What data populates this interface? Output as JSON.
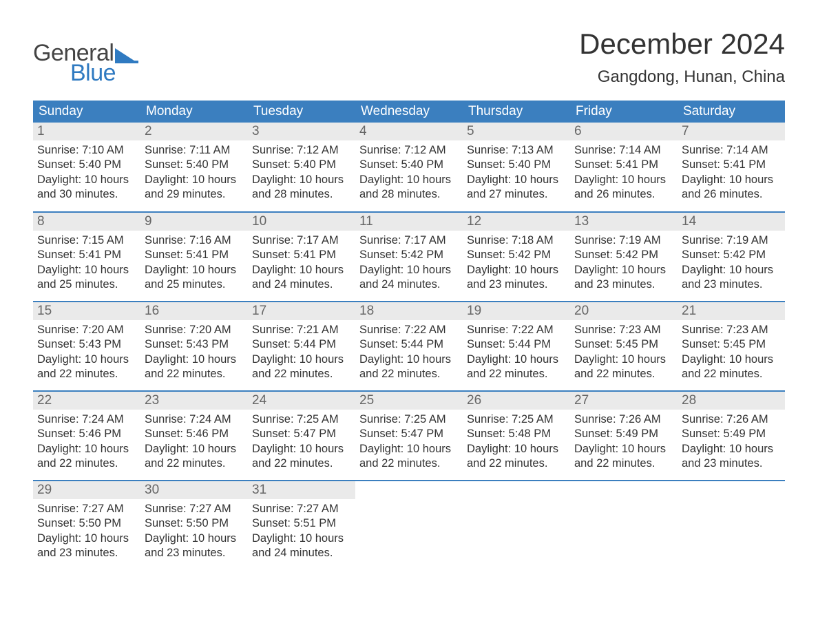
{
  "branding": {
    "word1": "General",
    "word2": "Blue",
    "text_color_1": "#444444",
    "text_color_2": "#2f7ac1",
    "flag_color": "#2f7ac1"
  },
  "title": "December 2024",
  "location": "Gangdong, Hunan, China",
  "colors": {
    "header_bg": "#3b7fbf",
    "header_text": "#ffffff",
    "daynum_bg": "#eaeaea",
    "daynum_text": "#666666",
    "body_text": "#333333",
    "background": "#ffffff",
    "week_sep": "#3b7fbf"
  },
  "typography": {
    "title_fontsize": 42,
    "location_fontsize": 24,
    "header_fontsize": 19,
    "daynum_fontsize": 19,
    "body_fontsize": 16.5
  },
  "weekday_headers": [
    "Sunday",
    "Monday",
    "Tuesday",
    "Wednesday",
    "Thursday",
    "Friday",
    "Saturday"
  ],
  "weeks": [
    [
      {
        "day": "1",
        "sunrise": "7:10 AM",
        "sunset": "5:40 PM",
        "daylight": "10 hours and 30 minutes."
      },
      {
        "day": "2",
        "sunrise": "7:11 AM",
        "sunset": "5:40 PM",
        "daylight": "10 hours and 29 minutes."
      },
      {
        "day": "3",
        "sunrise": "7:12 AM",
        "sunset": "5:40 PM",
        "daylight": "10 hours and 28 minutes."
      },
      {
        "day": "4",
        "sunrise": "7:12 AM",
        "sunset": "5:40 PM",
        "daylight": "10 hours and 28 minutes."
      },
      {
        "day": "5",
        "sunrise": "7:13 AM",
        "sunset": "5:40 PM",
        "daylight": "10 hours and 27 minutes."
      },
      {
        "day": "6",
        "sunrise": "7:14 AM",
        "sunset": "5:41 PM",
        "daylight": "10 hours and 26 minutes."
      },
      {
        "day": "7",
        "sunrise": "7:14 AM",
        "sunset": "5:41 PM",
        "daylight": "10 hours and 26 minutes."
      }
    ],
    [
      {
        "day": "8",
        "sunrise": "7:15 AM",
        "sunset": "5:41 PM",
        "daylight": "10 hours and 25 minutes."
      },
      {
        "day": "9",
        "sunrise": "7:16 AM",
        "sunset": "5:41 PM",
        "daylight": "10 hours and 25 minutes."
      },
      {
        "day": "10",
        "sunrise": "7:17 AM",
        "sunset": "5:41 PM",
        "daylight": "10 hours and 24 minutes."
      },
      {
        "day": "11",
        "sunrise": "7:17 AM",
        "sunset": "5:42 PM",
        "daylight": "10 hours and 24 minutes."
      },
      {
        "day": "12",
        "sunrise": "7:18 AM",
        "sunset": "5:42 PM",
        "daylight": "10 hours and 23 minutes."
      },
      {
        "day": "13",
        "sunrise": "7:19 AM",
        "sunset": "5:42 PM",
        "daylight": "10 hours and 23 minutes."
      },
      {
        "day": "14",
        "sunrise": "7:19 AM",
        "sunset": "5:42 PM",
        "daylight": "10 hours and 23 minutes."
      }
    ],
    [
      {
        "day": "15",
        "sunrise": "7:20 AM",
        "sunset": "5:43 PM",
        "daylight": "10 hours and 22 minutes."
      },
      {
        "day": "16",
        "sunrise": "7:20 AM",
        "sunset": "5:43 PM",
        "daylight": "10 hours and 22 minutes."
      },
      {
        "day": "17",
        "sunrise": "7:21 AM",
        "sunset": "5:44 PM",
        "daylight": "10 hours and 22 minutes."
      },
      {
        "day": "18",
        "sunrise": "7:22 AM",
        "sunset": "5:44 PM",
        "daylight": "10 hours and 22 minutes."
      },
      {
        "day": "19",
        "sunrise": "7:22 AM",
        "sunset": "5:44 PM",
        "daylight": "10 hours and 22 minutes."
      },
      {
        "day": "20",
        "sunrise": "7:23 AM",
        "sunset": "5:45 PM",
        "daylight": "10 hours and 22 minutes."
      },
      {
        "day": "21",
        "sunrise": "7:23 AM",
        "sunset": "5:45 PM",
        "daylight": "10 hours and 22 minutes."
      }
    ],
    [
      {
        "day": "22",
        "sunrise": "7:24 AM",
        "sunset": "5:46 PM",
        "daylight": "10 hours and 22 minutes."
      },
      {
        "day": "23",
        "sunrise": "7:24 AM",
        "sunset": "5:46 PM",
        "daylight": "10 hours and 22 minutes."
      },
      {
        "day": "24",
        "sunrise": "7:25 AM",
        "sunset": "5:47 PM",
        "daylight": "10 hours and 22 minutes."
      },
      {
        "day": "25",
        "sunrise": "7:25 AM",
        "sunset": "5:47 PM",
        "daylight": "10 hours and 22 minutes."
      },
      {
        "day": "26",
        "sunrise": "7:25 AM",
        "sunset": "5:48 PM",
        "daylight": "10 hours and 22 minutes."
      },
      {
        "day": "27",
        "sunrise": "7:26 AM",
        "sunset": "5:49 PM",
        "daylight": "10 hours and 22 minutes."
      },
      {
        "day": "28",
        "sunrise": "7:26 AM",
        "sunset": "5:49 PM",
        "daylight": "10 hours and 23 minutes."
      }
    ],
    [
      {
        "day": "29",
        "sunrise": "7:27 AM",
        "sunset": "5:50 PM",
        "daylight": "10 hours and 23 minutes."
      },
      {
        "day": "30",
        "sunrise": "7:27 AM",
        "sunset": "5:50 PM",
        "daylight": "10 hours and 23 minutes."
      },
      {
        "day": "31",
        "sunrise": "7:27 AM",
        "sunset": "5:51 PM",
        "daylight": "10 hours and 24 minutes."
      },
      null,
      null,
      null,
      null
    ]
  ],
  "labels": {
    "sunrise_prefix": "Sunrise: ",
    "sunset_prefix": "Sunset: ",
    "daylight_prefix": "Daylight: "
  }
}
